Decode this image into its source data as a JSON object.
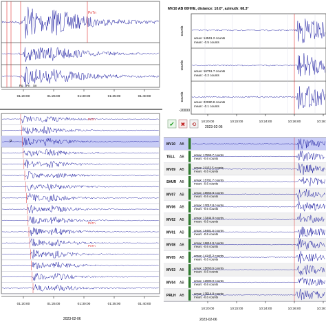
{
  "colors": {
    "trace": "#1a1aa0",
    "pick": "#e03030",
    "panel_border": "#505050",
    "grid": "#9a9ab8",
    "highlight": "#c8ccf6",
    "station_bar": "#2f7a2f",
    "row_alt": "#f0f0f0"
  },
  "top_left": {
    "time_ticks": [
      "01:20:00",
      "01:25:00",
      "01:30:00",
      "01:35:00",
      "01:40:00"
    ],
    "pick_labels": [
      "Pg",
      "Pn",
      "Sn"
    ],
    "amp_label": "PnTn"
  },
  "top_right": {
    "header": "MV10  AB  00HHE, distance: 10.0°, azimuth: 68.3°",
    "unit": "counts",
    "traces": [
      {
        "amax": "amax: 14561.2 counts",
        "mean": "mean: -0.5 counts"
      },
      {
        "amax": "amax: 16751.7 counts",
        "mean": "mean: -0.2 counts"
      },
      {
        "amax": "amax: 22080.8 counts",
        "mean": "mean: -0.1 counts"
      }
    ],
    "y_tick": "-20000",
    "time_ticks": [
      "10:20:00",
      "10:22:00",
      "10:24:00",
      "10:26:00",
      "10:28:00"
    ],
    "date": "2023-02-06",
    "buttons": [
      {
        "name": "accept",
        "glyph": "✔"
      },
      {
        "name": "reject",
        "glyph": "✖"
      },
      {
        "name": "reset",
        "glyph": "⟲"
      }
    ]
  },
  "bottom_left": {
    "time_ticks": [
      "01:20:00",
      "01:25:00",
      "01:30:00",
      "01:35:00",
      "01:40:00"
    ],
    "pick_p": "P",
    "amp_label": "PnTn",
    "date": "2023-02-06"
  },
  "stations": [
    {
      "name": "MV10",
      "net": "AB",
      "amax": "",
      "mean": ""
    },
    {
      "name": "TELL",
      "net": "AB",
      "amax": "amax: 17556.7 counts",
      "mean": "mean: -0.6 counts"
    },
    {
      "name": "MV09",
      "net": "AB",
      "amax": "amax: 21152.5 counts",
      "mean": "mean: -0.6 counts"
    },
    {
      "name": "SHUR",
      "net": "AB",
      "amax": "amax: 15781.7 counts",
      "mean": "mean: -0.6 counts"
    },
    {
      "name": "MV07",
      "net": "AB",
      "amax": "amax: 15553.8 counts",
      "mean": "mean: -0.6 counts"
    },
    {
      "name": "MV06",
      "net": "AB",
      "amax": "amax: 12012.8 counts",
      "mean": "mean: -0.6 counts"
    },
    {
      "name": "MV02",
      "net": "AB",
      "amax": "amax: 13444.8 counts",
      "mean": "mean: -0.6 counts"
    },
    {
      "name": "MV01",
      "net": "AB",
      "amax": "amax: 18481.6 counts",
      "mean": "mean: -0.6 counts"
    },
    {
      "name": "MV08",
      "net": "AB",
      "amax": "amax: 16614.9 counts",
      "mean": "mean: -0.6 counts"
    },
    {
      "name": "MV05",
      "net": "AB",
      "amax": "amax: 14145.2 counts",
      "mean": "mean: -0.6 counts"
    },
    {
      "name": "MV03",
      "net": "AB",
      "amax": "amax: 15060.6 counts",
      "mean": "mean: -0.6 counts"
    },
    {
      "name": "MV04",
      "net": "AB",
      "amax": "amax: 12690.0 counts",
      "mean": "mean: -0.6 counts"
    },
    {
      "name": "PRLH",
      "net": "AB",
      "amax": "amax: 13514.8 counts",
      "mean": "mean: -0.6 counts"
    }
  ],
  "bottom_right": {
    "time_ticks": [
      "10:20:00",
      "10:22:00",
      "10:24:00",
      "10:26:00",
      "10:28:00"
    ],
    "date": "2023-02-06"
  }
}
